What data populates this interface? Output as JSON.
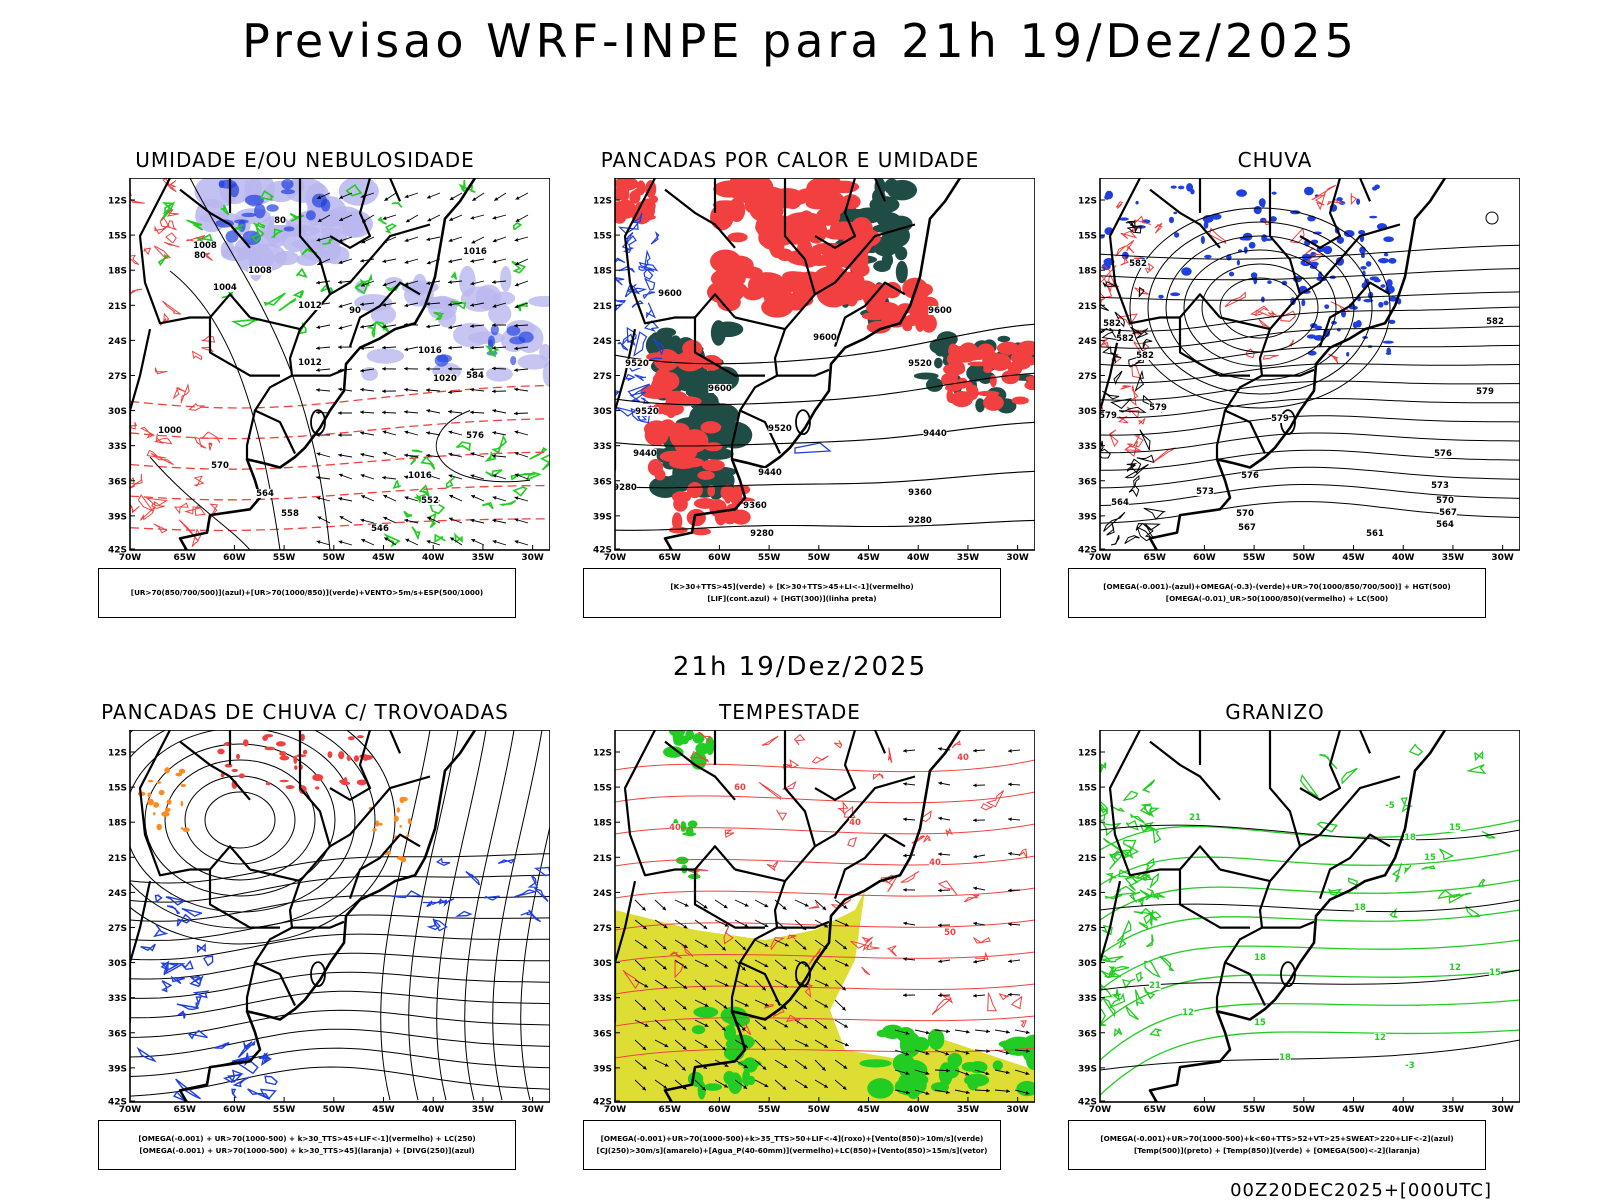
{
  "title": "Previsao WRF-INPE  para 21h 19/Dez/2025",
  "mid_title": "21h 19/Dez/2025",
  "footer": "00Z20DEC2025+[000UTC]",
  "lat_labels": [
    "12S",
    "15S",
    "18S",
    "21S",
    "24S",
    "27S",
    "30S",
    "33S",
    "36S",
    "39S",
    "42S"
  ],
  "lon_labels": [
    "70W",
    "65W",
    "60W",
    "55W",
    "50W",
    "45W",
    "40W",
    "35W",
    "30W"
  ],
  "colors": {
    "red": "#f24040",
    "green": "#22cc22",
    "blue": "#1f3fe0",
    "darkgreen": "#1f4d46",
    "yellow": "#dddd33",
    "lavender": "#b9b6ee"
  },
  "panels": [
    {
      "title": "UMIDADE E/OU NEBULOSIDADE",
      "legend": [
        "[UR>70(850/700/500)](azul)+[UR>70(1000/850)](verde)+VENTO>5m/s+ESP(500/1000)"
      ],
      "contour_labels": [
        "1016",
        "1004",
        "1008",
        "1012",
        "1020",
        "1016",
        "1012",
        "1008",
        "1000",
        "1016",
        "584",
        "576",
        "570",
        "564",
        "558",
        "552",
        "546",
        "80",
        "80",
        "90"
      ]
    },
    {
      "title": "PANCADAS POR CALOR E UMIDADE",
      "legend": [
        "[K>30+TTS>45](verde) + [K>30+TTS>45+LI<-1](vermelho)",
        "[LIF](cont.azul) + [HGT(300)](linha preta)"
      ],
      "contour_labels": [
        "9600",
        "9600",
        "9600",
        "9520",
        "9520",
        "9600",
        "9520",
        "9440",
        "9440",
        "9440",
        "9360",
        "9360",
        "9280",
        "9280",
        "9280",
        "9520"
      ]
    },
    {
      "title": "CHUVA",
      "legend": [
        "[OMEGA(-0.001)-(azul)+OMEGA(-0.3)-(verde)+UR>70(1000/850/700/500)] + HGT(500)",
        "[OMEGA(-0.01)_UR>50(1000/850)(vermelho) + LC(500)"
      ],
      "contour_labels": [
        "582",
        "582",
        "582",
        "582",
        "582",
        "579",
        "579",
        "579",
        "579",
        "576",
        "576",
        "573",
        "573",
        "570",
        "570",
        "567",
        "567",
        "564",
        "564",
        "561"
      ]
    },
    {
      "title": "PANCADAS DE CHUVA C/ TROVOADAS",
      "legend": [
        "[OMEGA(-0.001) + UR>70(1000-500) + k>30_TTS>45+LIF<-1](vermelho) + LC(250)",
        "[OMEGA(-0.001) + UR>70(1000-500) + k>30_TTS>45](laranja) + [DIVG(250)](azul)"
      ],
      "contour_labels": []
    },
    {
      "title": "TEMPESTADE",
      "legend": [
        "[OMEGA(-0.001)+UR>70(1000-500)+k>35_TTS>50+LIF<-4](roxo)+[Vento(850)>10m/s](verde)",
        "[CJ(250)>30m/s](amarelo)+[Agua_P(40-60mm)](vermelho)+LC(850)+[Vento(850)>15m/s](vetor)"
      ],
      "contour_labels": [
        "60",
        "40",
        "40",
        "40",
        "40",
        "50"
      ]
    },
    {
      "title": "GRANIZO",
      "legend": [
        "[OMEGA(-0.001)+UR>70(1000-500)+k<60+TTS>52+VT>25+SWEAT>220+LIF<-2](azul)",
        "[Temp(500)](preto) + [Temp(850)](verde) + [OMEGA(500)<-2](laranja)"
      ],
      "contour_labels": [
        "-5",
        "15",
        "18",
        "15",
        "18",
        "21",
        "18",
        "12",
        "12",
        "15",
        "12",
        "15",
        "18",
        "-3",
        "21"
      ]
    }
  ]
}
